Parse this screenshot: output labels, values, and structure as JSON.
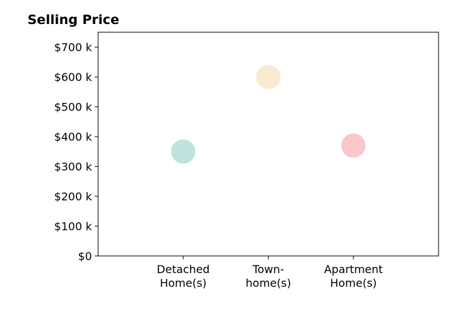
{
  "chart_data": {
    "type": "scatter",
    "title": "Selling Price",
    "xlabel": "",
    "ylabel": "",
    "categories": [
      [
        "Detached",
        "Home(s)"
      ],
      [
        "Town-",
        "home(s)"
      ],
      [
        "Apartment",
        "Home(s)"
      ]
    ],
    "values": [
      350,
      600,
      370
    ],
    "colors": [
      "#b2dfd9",
      "#f8e8c8",
      "#f7bec4"
    ],
    "y_ticks": [
      0,
      100,
      200,
      300,
      400,
      500,
      600,
      700
    ],
    "y_tick_labels": [
      "$0",
      "$100 k",
      "$200 k",
      "$300 k",
      "$400 k",
      "$500 k",
      "$600 k",
      "$700 k"
    ],
    "ylim": [
      0,
      750
    ],
    "xlim": [
      0,
      4
    ],
    "grid": false,
    "legend": "none"
  }
}
